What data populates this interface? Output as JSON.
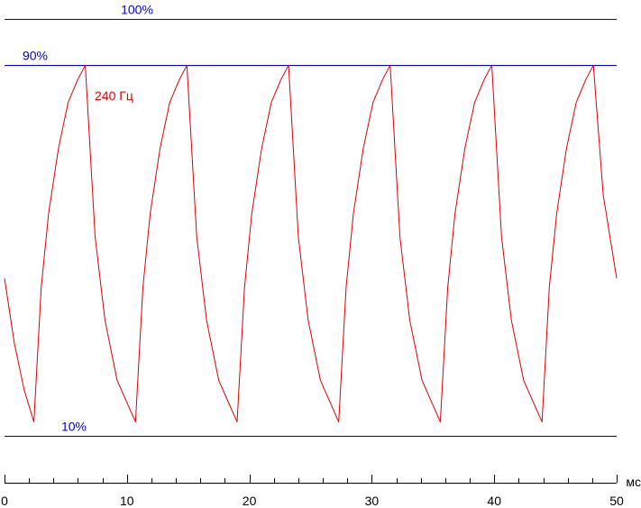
{
  "chart_data": {
    "type": "line",
    "title": "",
    "xlabel": "мс",
    "ylabel": "",
    "xlim": [
      0,
      50
    ],
    "ylim": [
      0,
      100
    ],
    "grid": false,
    "x_ticks": [
      {
        "value": 0,
        "label": "0"
      },
      {
        "value": 10,
        "label": "10"
      },
      {
        "value": 20,
        "label": "20"
      },
      {
        "value": 30,
        "label": "30"
      },
      {
        "value": 40,
        "label": "40"
      },
      {
        "value": 50,
        "label": "50"
      }
    ],
    "x_minor_step": 2,
    "reference_lines": [
      {
        "value": 100,
        "label": "100%",
        "color": "#0000cc"
      },
      {
        "value": 90,
        "label": "90%",
        "color": "#0000cc"
      },
      {
        "value": 10,
        "label": "10%",
        "color": "#0000cc"
      }
    ],
    "series": [
      {
        "name": "240 Гц",
        "color": "#dd0000",
        "period_ms": 4.1667,
        "rise_tau_ms": 1.6,
        "fall_tau_ms": 2.0,
        "low_level": 13,
        "high_level": 90,
        "points": [
          [
            0,
            44
          ],
          [
            0.8,
            30
          ],
          [
            1.6,
            20
          ],
          [
            2.4,
            13
          ],
          [
            3.0,
            42
          ],
          [
            3.6,
            58
          ],
          [
            4.4,
            72
          ],
          [
            5.2,
            82
          ],
          [
            6.0,
            87
          ],
          [
            6.6,
            90
          ],
          [
            7.4,
            53
          ],
          [
            8.2,
            35
          ],
          [
            9.2,
            22
          ],
          [
            10.7,
            13
          ],
          [
            11.3,
            42
          ],
          [
            11.9,
            58
          ],
          [
            12.7,
            72
          ],
          [
            13.5,
            82
          ],
          [
            14.3,
            87
          ],
          [
            14.9,
            90
          ],
          [
            15.7,
            53
          ],
          [
            16.5,
            35
          ],
          [
            17.5,
            22
          ],
          [
            19.0,
            13
          ],
          [
            19.6,
            42
          ],
          [
            20.2,
            58
          ],
          [
            21.0,
            72
          ],
          [
            21.8,
            82
          ],
          [
            22.6,
            87
          ],
          [
            23.2,
            90
          ],
          [
            24.0,
            53
          ],
          [
            24.8,
            35
          ],
          [
            25.8,
            22
          ],
          [
            27.3,
            13
          ],
          [
            27.9,
            42
          ],
          [
            28.5,
            58
          ],
          [
            29.3,
            72
          ],
          [
            30.1,
            82
          ],
          [
            30.9,
            87
          ],
          [
            31.5,
            90
          ],
          [
            32.3,
            53
          ],
          [
            33.1,
            35
          ],
          [
            34.1,
            22
          ],
          [
            35.6,
            13
          ],
          [
            36.2,
            42
          ],
          [
            36.8,
            58
          ],
          [
            37.6,
            72
          ],
          [
            38.4,
            82
          ],
          [
            39.2,
            87
          ],
          [
            39.8,
            90
          ],
          [
            40.6,
            53
          ],
          [
            41.4,
            35
          ],
          [
            42.4,
            22
          ],
          [
            43.9,
            13
          ],
          [
            44.5,
            42
          ],
          [
            45.1,
            58
          ],
          [
            45.9,
            72
          ],
          [
            46.7,
            82
          ],
          [
            47.5,
            87
          ],
          [
            48.1,
            90
          ],
          [
            48.9,
            62
          ],
          [
            50.0,
            44
          ]
        ]
      }
    ]
  }
}
